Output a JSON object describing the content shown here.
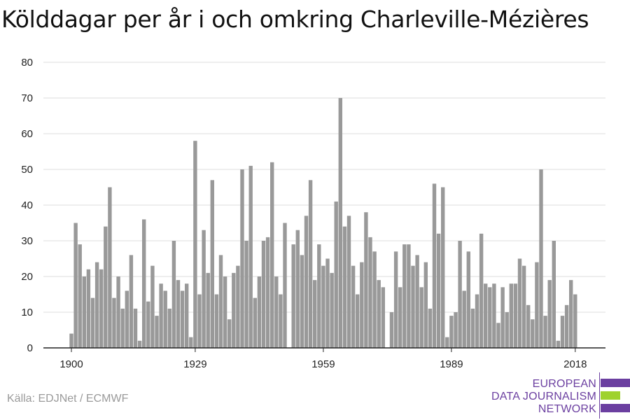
{
  "title": "Kölddagar per år i och omkring Charleville-Mézières",
  "source": "Källa: EDJNet / ECMWF",
  "logo": {
    "line1": "EUROPEAN",
    "line2": "DATA JOURNALISM",
    "line3": "NETWORK"
  },
  "colors": {
    "bar": "#999999",
    "grid": "#dddddd",
    "axis": "#222222",
    "logo_purple": "#6b3fa0",
    "logo_green": "#9fd22e"
  },
  "chart_data": {
    "type": "bar",
    "title": "Kölddagar per år i och omkring Charleville-Mézières",
    "xlabel": "",
    "ylabel": "",
    "ylim": [
      0,
      80
    ],
    "yticks": [
      0,
      10,
      20,
      30,
      40,
      50,
      60,
      70,
      80
    ],
    "xticks": [
      1900,
      1929,
      1959,
      1989,
      2018
    ],
    "x_start": 1900,
    "x_end": 2020,
    "grid": true,
    "legend": "none",
    "x": [
      1900,
      1901,
      1902,
      1903,
      1904,
      1905,
      1906,
      1907,
      1908,
      1909,
      1910,
      1911,
      1912,
      1913,
      1914,
      1915,
      1916,
      1917,
      1918,
      1919,
      1920,
      1921,
      1922,
      1923,
      1924,
      1925,
      1926,
      1927,
      1928,
      1929,
      1930,
      1931,
      1932,
      1933,
      1934,
      1935,
      1936,
      1937,
      1938,
      1939,
      1940,
      1941,
      1942,
      1943,
      1944,
      1945,
      1946,
      1947,
      1948,
      1949,
      1950,
      1951,
      1952,
      1953,
      1954,
      1955,
      1956,
      1957,
      1958,
      1959,
      1960,
      1961,
      1962,
      1963,
      1964,
      1965,
      1966,
      1967,
      1968,
      1969,
      1970,
      1971,
      1972,
      1973,
      1974,
      1975,
      1976,
      1977,
      1978,
      1979,
      1980,
      1981,
      1982,
      1983,
      1984,
      1985,
      1986,
      1987,
      1988,
      1989,
      1990,
      1991,
      1992,
      1993,
      1994,
      1995,
      1996,
      1997,
      1998,
      1999,
      2000,
      2001,
      2002,
      2003,
      2004,
      2005,
      2006,
      2007,
      2008,
      2009,
      2010,
      2011,
      2012,
      2013,
      2014,
      2015,
      2016,
      2017,
      2018
    ],
    "values": [
      4,
      35,
      29,
      20,
      22,
      14,
      24,
      22,
      34,
      45,
      14,
      20,
      11,
      16,
      26,
      11,
      2,
      36,
      13,
      23,
      9,
      18,
      16,
      11,
      30,
      19,
      16,
      18,
      3,
      58,
      15,
      33,
      21,
      47,
      15,
      26,
      20,
      8,
      21,
      23,
      50,
      30,
      51,
      14,
      20,
      30,
      31,
      52,
      20,
      15,
      35,
      0,
      29,
      33,
      26,
      37,
      47,
      19,
      29,
      23,
      25,
      21,
      41,
      70,
      34,
      37,
      23,
      15,
      24,
      38,
      31,
      27,
      19,
      17,
      0,
      10,
      27,
      17,
      29,
      29,
      23,
      26,
      17,
      24,
      11,
      46,
      32,
      45,
      3,
      9,
      10,
      30,
      16,
      27,
      11,
      15,
      32,
      18,
      17,
      18,
      7,
      17,
      10,
      18,
      18,
      25,
      23,
      12,
      8,
      24,
      50,
      9,
      19,
      30,
      2,
      9,
      12,
      19,
      15
    ]
  }
}
